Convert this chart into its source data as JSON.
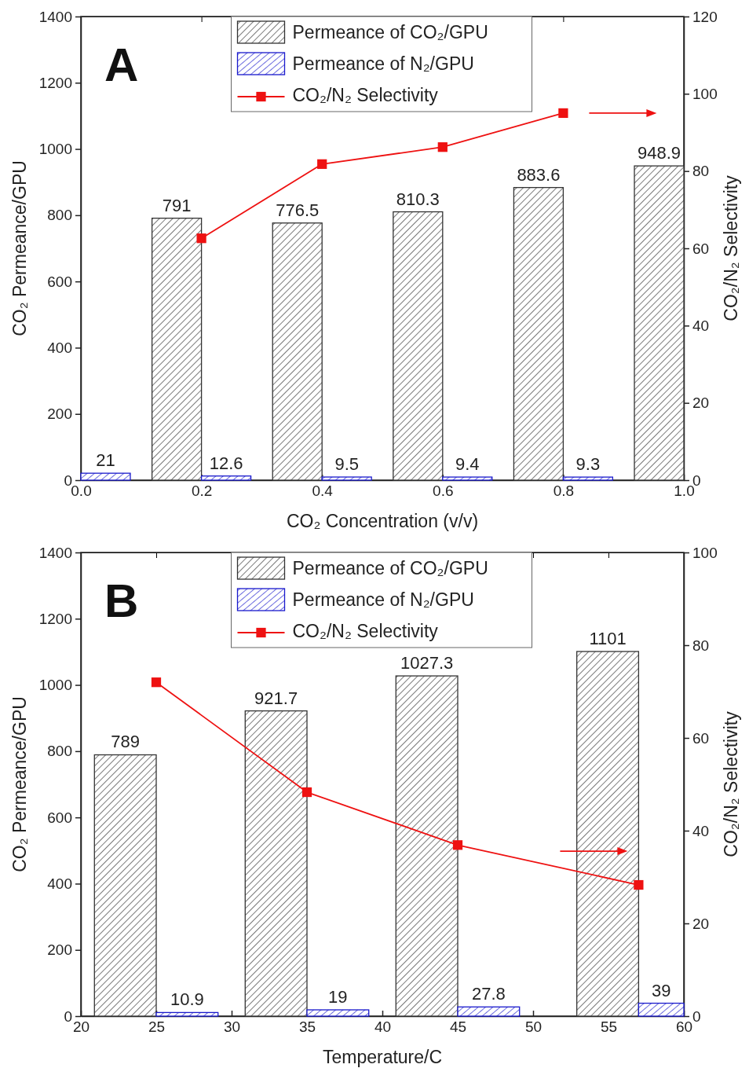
{
  "chart_data": [
    {
      "type": "bar",
      "annotations": [
        "A"
      ],
      "xlabel": "CO₂ Concentration (v/v)",
      "ylabel": "CO₂ Permeance/GPU",
      "y2label": "CO₂/N₂ Selectivity",
      "x": [
        0,
        0.2,
        0.4,
        0.6,
        0.8,
        1.0
      ],
      "xlim": [
        0,
        1.0
      ],
      "xticks": [
        {
          "value": 0,
          "label": "0.0"
        },
        0.2,
        0.4,
        0.6,
        0.8,
        {
          "value": 1.0,
          "label": "1.0"
        }
      ],
      "ylim": [
        0,
        1400
      ],
      "yticks": [
        0,
        200,
        400,
        600,
        800,
        1000,
        1200,
        1400
      ],
      "y2lim": [
        0,
        120
      ],
      "y2ticks": [
        0,
        20,
        40,
        60,
        80,
        100,
        120
      ],
      "legend": "top",
      "marker": "square",
      "line_style": "solid",
      "series": [
        {
          "name": "Permeance of CO₂/GPU",
          "color": "#333333",
          "values": [
            null,
            791,
            776.5,
            810.3,
            883.6,
            948.9
          ],
          "value_labels": [
            null,
            "791",
            "776.5",
            "810.3",
            "883.6",
            "948.9"
          ]
        },
        {
          "name": "Permeance of N₂/GPU",
          "color": "#1a1acc",
          "values": [
            21,
            12.6,
            9.5,
            9.4,
            9.3,
            null
          ],
          "value_labels": [
            "21",
            "12.6",
            "9.5",
            "9.4",
            "9.3",
            null
          ]
        },
        {
          "name": "CO₂/N₂ Selectivity",
          "type": "line",
          "axis": "y2",
          "color": "#ee1111",
          "values": [
            null,
            62.6,
            81.8,
            86.2,
            95.0,
            null
          ]
        }
      ]
    },
    {
      "type": "bar",
      "annotations": [
        "B"
      ],
      "xlabel": "Temperature/C",
      "ylabel": "CO₂ Permeance/GPU",
      "y2label": "CO₂/N₂ Selectivity",
      "x": [
        25,
        35,
        45,
        57
      ],
      "xlim": [
        20,
        60
      ],
      "xticks": [
        20,
        25,
        30,
        35,
        40,
        45,
        50,
        55,
        60
      ],
      "ylim": [
        0,
        1400
      ],
      "yticks": [
        0,
        200,
        400,
        600,
        800,
        1000,
        1200,
        1400
      ],
      "y2lim": [
        0,
        100
      ],
      "y2ticks": [
        0,
        20,
        40,
        60,
        80,
        100
      ],
      "legend": "top",
      "marker": "square",
      "line_style": "solid",
      "series": [
        {
          "name": "Permeance of CO₂/GPU",
          "color": "#333333",
          "values": [
            789,
            921.7,
            1027.3,
            1101
          ],
          "value_labels": [
            "789",
            "921.7",
            "1027.3",
            "1101"
          ]
        },
        {
          "name": "Permeance of N₂/GPU",
          "color": "#1a1acc",
          "values": [
            10.9,
            19,
            27.8,
            39
          ],
          "value_labels": [
            "10.9",
            "19",
            "27.8",
            "39"
          ]
        },
        {
          "name": "CO₂/N₂ Selectivity",
          "type": "line",
          "axis": "y2",
          "color": "#ee1111",
          "values": [
            72.0,
            48.3,
            36.9,
            28.3
          ]
        }
      ]
    }
  ]
}
